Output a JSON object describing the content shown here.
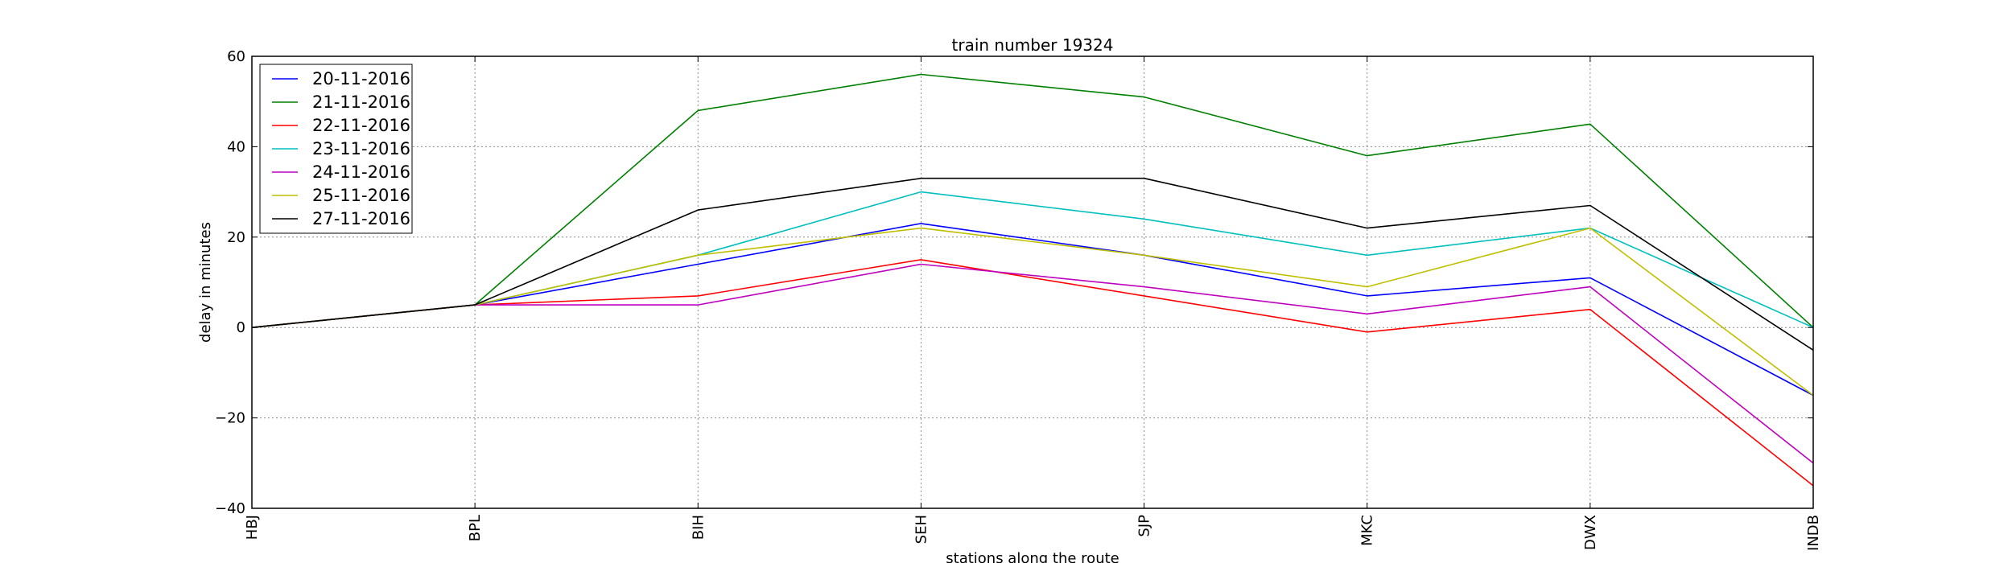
{
  "chart_data": {
    "type": "line",
    "title": "train number 19324",
    "xlabel": "stations along the route",
    "ylabel": "delay in minutes",
    "categories": [
      "HBJ",
      "BPL",
      "BIH",
      "SEH",
      "SJP",
      "MKC",
      "DWX",
      "INDB"
    ],
    "ylim": [
      -40,
      60
    ],
    "yticks": [
      -40,
      -20,
      0,
      20,
      40,
      60
    ],
    "y_tick_labels": [
      "−40",
      "−20",
      "0",
      "20",
      "40",
      "60"
    ],
    "grid": true,
    "legend_position": "top-left",
    "series": [
      {
        "name": "20-11-2016",
        "color": "#0000ff",
        "values": [
          0,
          5,
          14,
          23,
          16,
          7,
          11,
          -15
        ]
      },
      {
        "name": "21-11-2016",
        "color": "#008000",
        "values": [
          0,
          5,
          48,
          56,
          51,
          38,
          45,
          0
        ]
      },
      {
        "name": "22-11-2016",
        "color": "#ff0000",
        "values": [
          0,
          5,
          7,
          15,
          7,
          -1,
          4,
          -35
        ]
      },
      {
        "name": "23-11-2016",
        "color": "#00bfbf",
        "values": [
          0,
          5,
          16,
          30,
          24,
          16,
          22,
          0
        ]
      },
      {
        "name": "24-11-2016",
        "color": "#bf00bf",
        "values": [
          0,
          5,
          5,
          14,
          9,
          3,
          9,
          -30
        ]
      },
      {
        "name": "25-11-2016",
        "color": "#bfbf00",
        "values": [
          0,
          5,
          16,
          22,
          16,
          9,
          22,
          -15
        ]
      },
      {
        "name": "27-11-2016",
        "color": "#000000",
        "values": [
          0,
          5,
          26,
          33,
          33,
          22,
          27,
          -5
        ]
      }
    ]
  }
}
